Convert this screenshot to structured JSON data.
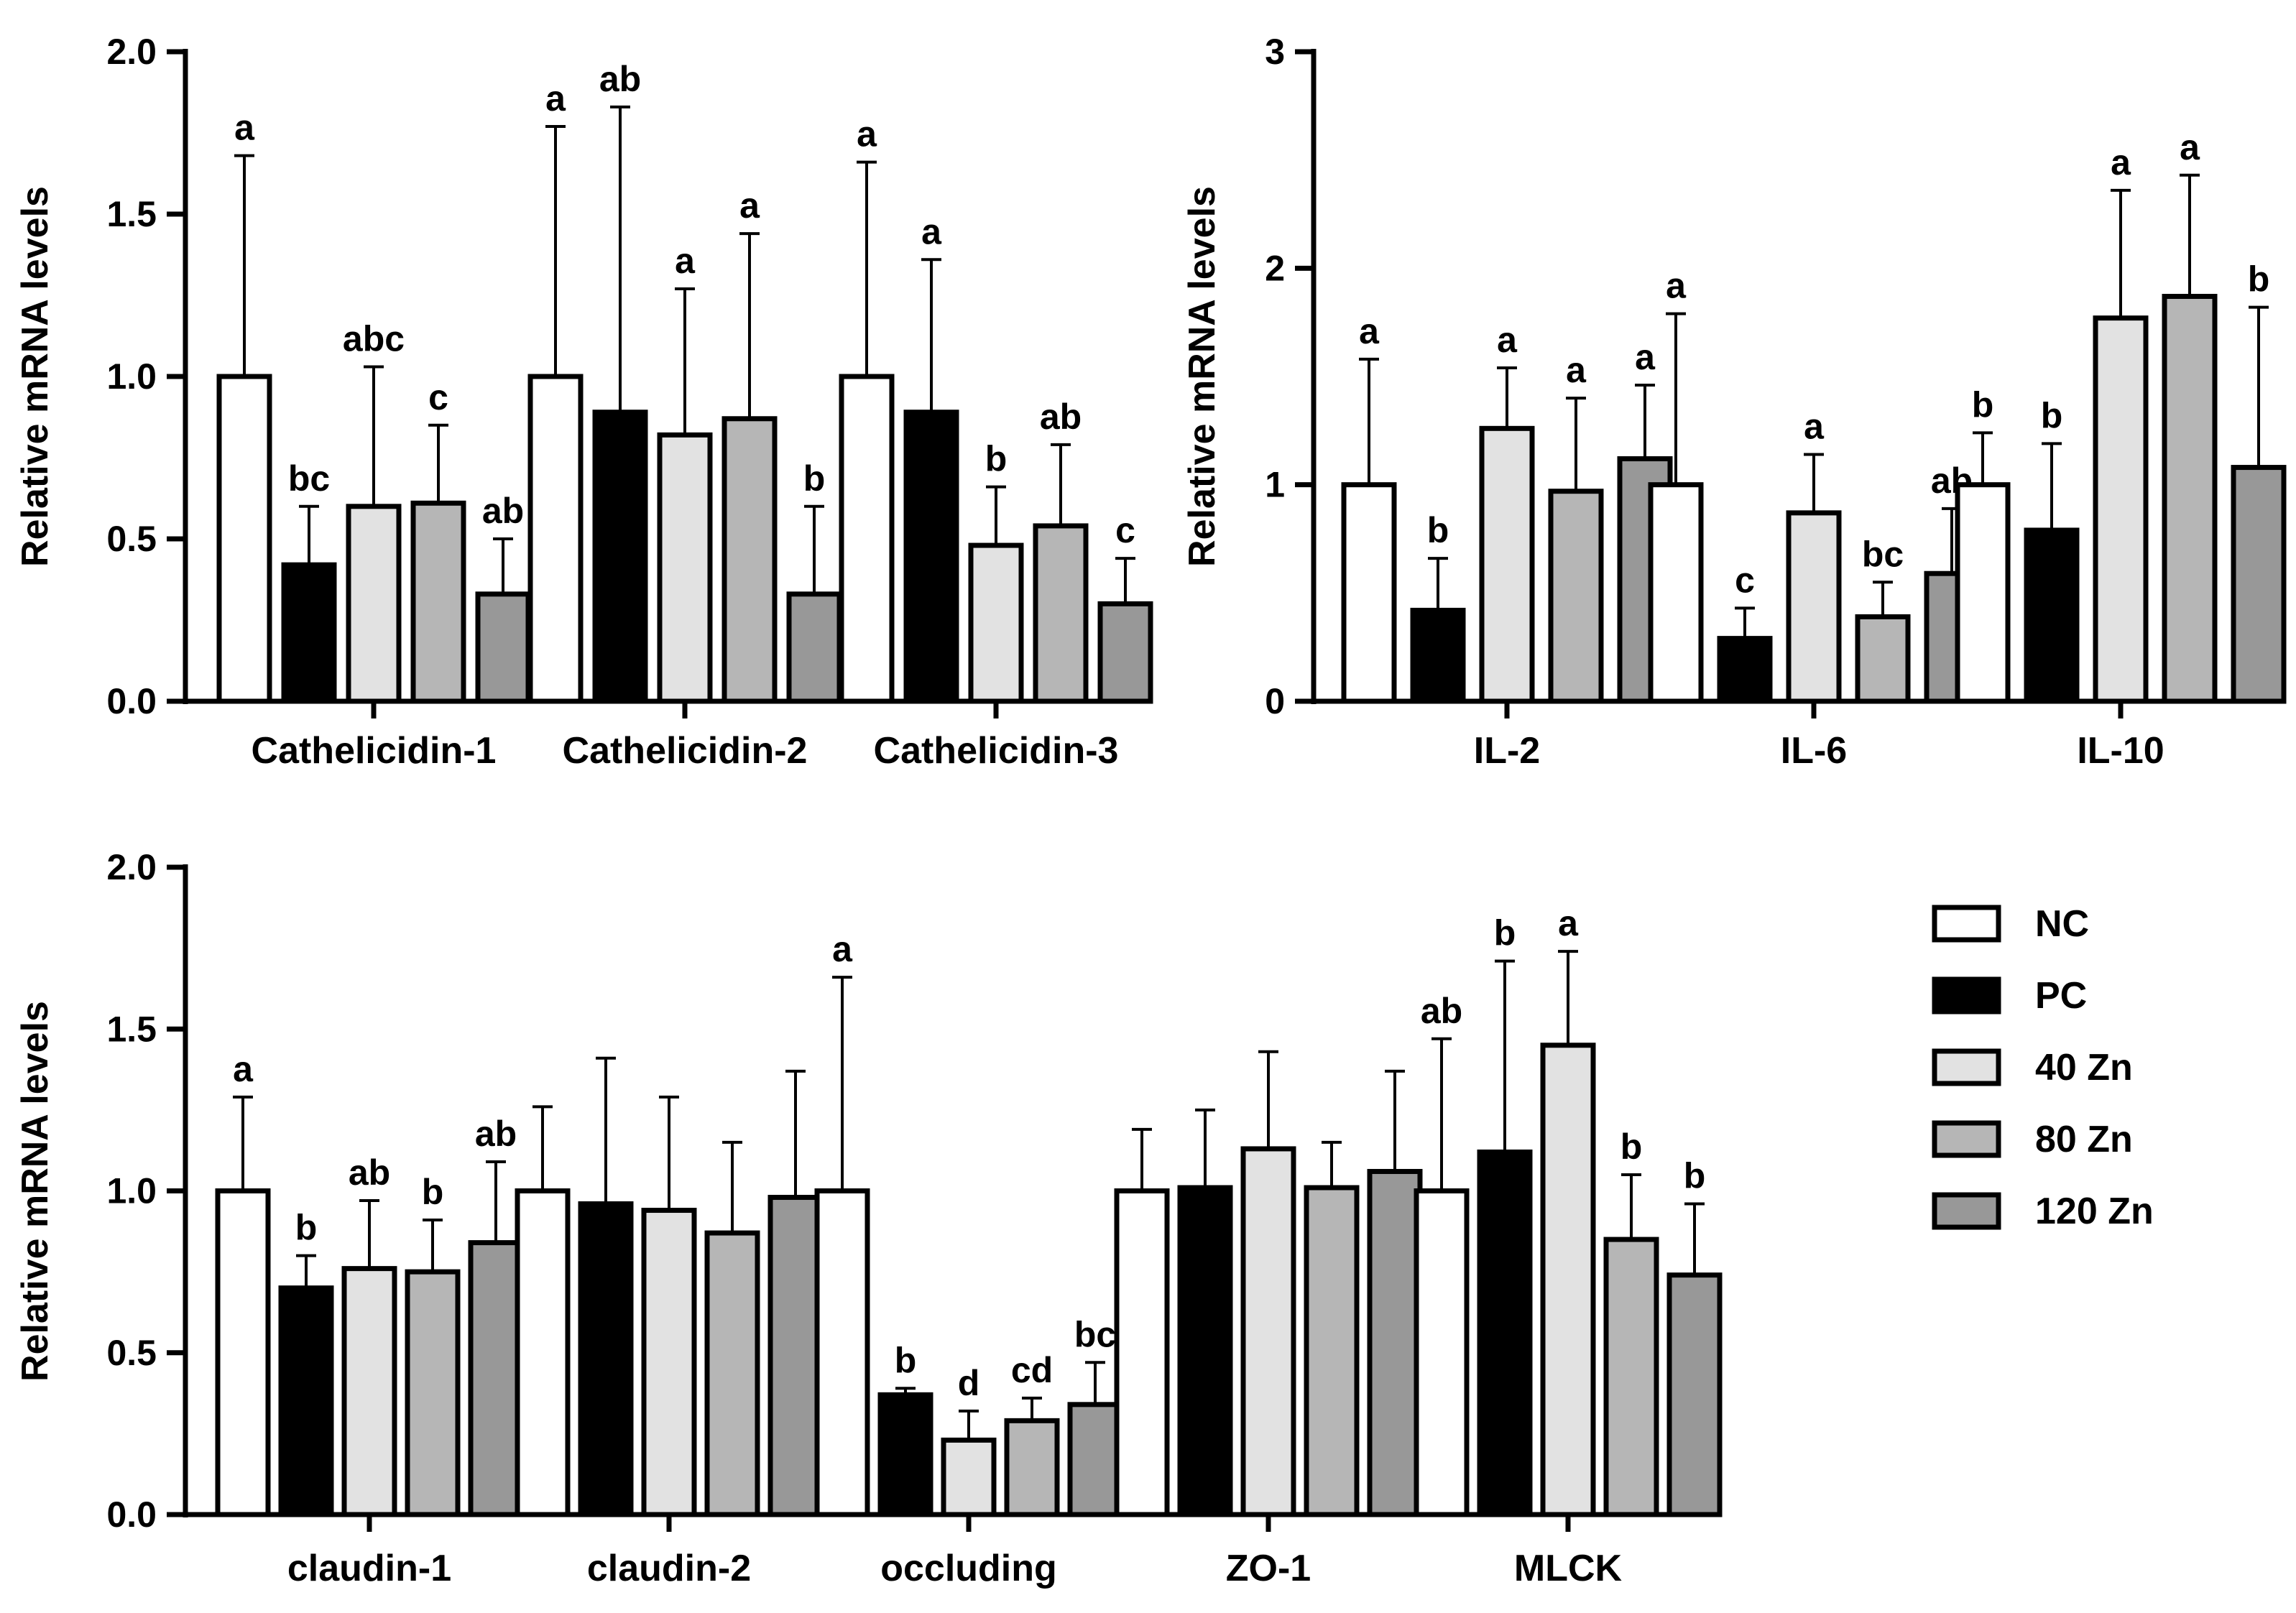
{
  "groups": [
    {
      "name": "NC",
      "color": "#ffffff"
    },
    {
      "name": "PC",
      "color": "#000000"
    },
    {
      "name": "40 Zn",
      "color": "#e2e2e2"
    },
    {
      "name": "80 Zn",
      "color": "#b6b6b6"
    },
    {
      "name": "120 Zn",
      "color": "#989898"
    }
  ],
  "chart_data": [
    {
      "type": "bar",
      "ylabel": "Relative mRNA  levels",
      "ylim": [
        0,
        2
      ],
      "yticks": [
        "0.0",
        "0.5",
        "1.0",
        "1.5",
        "2.0"
      ],
      "categories": [
        "Cathelicidin-1",
        "Cathelicidin-2",
        "Cathelicidin-3"
      ],
      "series": [
        {
          "name": "NC",
          "values": [
            1.0,
            1.0,
            1.0
          ],
          "errors": [
            0.68,
            0.77,
            0.66
          ],
          "letters": [
            "a",
            "a",
            "a"
          ]
        },
        {
          "name": "PC",
          "values": [
            0.42,
            0.89,
            0.89
          ],
          "errors": [
            0.18,
            0.94,
            0.47
          ],
          "letters": [
            "bc",
            "ab",
            "a"
          ]
        },
        {
          "name": "40 Zn",
          "values": [
            0.6,
            0.82,
            0.48
          ],
          "errors": [
            0.43,
            0.45,
            0.18
          ],
          "letters": [
            "abc",
            "a",
            "b"
          ]
        },
        {
          "name": "80 Zn",
          "values": [
            0.61,
            0.87,
            0.54
          ],
          "errors": [
            0.24,
            0.57,
            0.25
          ],
          "letters": [
            "c",
            "a",
            "ab"
          ]
        },
        {
          "name": "120 Zn",
          "values": [
            0.33,
            0.33,
            0.3
          ],
          "errors": [
            0.17,
            0.27,
            0.14
          ],
          "letters": [
            "ab",
            "b",
            "c"
          ]
        }
      ]
    },
    {
      "type": "bar",
      "ylabel": "Relative mRNA  levels",
      "ylim": [
        0,
        3
      ],
      "yticks": [
        "0",
        "1",
        "2",
        "3"
      ],
      "categories": [
        "IL-2",
        "IL-6",
        "IL-10"
      ],
      "series": [
        {
          "name": "NC",
          "values": [
            1.0,
            1.0,
            1.0
          ],
          "errors": [
            0.58,
            0.79,
            0.24
          ],
          "letters": [
            "a",
            "a",
            "b"
          ]
        },
        {
          "name": "PC",
          "values": [
            0.42,
            0.29,
            0.79
          ],
          "errors": [
            0.24,
            0.14,
            0.4
          ],
          "letters": [
            "b",
            "c",
            "b"
          ]
        },
        {
          "name": "40 Zn",
          "values": [
            1.26,
            0.87,
            1.77
          ],
          "errors": [
            0.28,
            0.27,
            0.59
          ],
          "letters": [
            "a",
            "a",
            "a"
          ]
        },
        {
          "name": "80 Zn",
          "values": [
            0.97,
            0.39,
            1.87
          ],
          "errors": [
            0.43,
            0.16,
            0.56
          ],
          "letters": [
            "a",
            "bc",
            "a"
          ]
        },
        {
          "name": "120 Zn",
          "values": [
            1.12,
            0.59,
            1.08
          ],
          "errors": [
            0.34,
            0.3,
            0.74
          ],
          "letters": [
            "a",
            "ab",
            "b"
          ]
        }
      ]
    },
    {
      "type": "bar",
      "ylabel": "Relative mRNA  levels",
      "ylim": [
        0,
        2
      ],
      "yticks": [
        "0.0",
        "0.5",
        "1.0",
        "1.5",
        "2.0"
      ],
      "categories": [
        "claudin-1",
        "claudin-2",
        "occluding",
        "ZO-1",
        "MLCK"
      ],
      "series": [
        {
          "name": "NC",
          "values": [
            1.0,
            1.0,
            1.0,
            1.0,
            1.0
          ],
          "errors": [
            0.29,
            0.26,
            0.66,
            0.19,
            0.47
          ],
          "letters": [
            "a",
            "",
            "a",
            "",
            "ab"
          ]
        },
        {
          "name": "PC",
          "values": [
            0.7,
            0.96,
            0.37,
            1.01,
            1.12
          ],
          "errors": [
            0.1,
            0.45,
            0.02,
            0.24,
            0.59
          ],
          "letters": [
            "b",
            "",
            "b",
            "",
            "b"
          ]
        },
        {
          "name": "40 Zn",
          "values": [
            0.76,
            0.94,
            0.23,
            1.13,
            1.45
          ],
          "errors": [
            0.21,
            0.35,
            0.09,
            0.3,
            0.29
          ],
          "letters": [
            "ab",
            "",
            "d",
            "",
            "a"
          ]
        },
        {
          "name": "80 Zn",
          "values": [
            0.75,
            0.87,
            0.29,
            1.01,
            0.85
          ],
          "errors": [
            0.16,
            0.28,
            0.07,
            0.14,
            0.2
          ],
          "letters": [
            "b",
            "",
            "cd",
            "",
            "b"
          ]
        },
        {
          "name": "120 Zn",
          "values": [
            0.84,
            0.98,
            0.34,
            1.06,
            0.74
          ],
          "errors": [
            0.25,
            0.39,
            0.13,
            0.31,
            0.22
          ],
          "letters": [
            "ab",
            "",
            "bc",
            "",
            "b"
          ]
        }
      ]
    }
  ]
}
